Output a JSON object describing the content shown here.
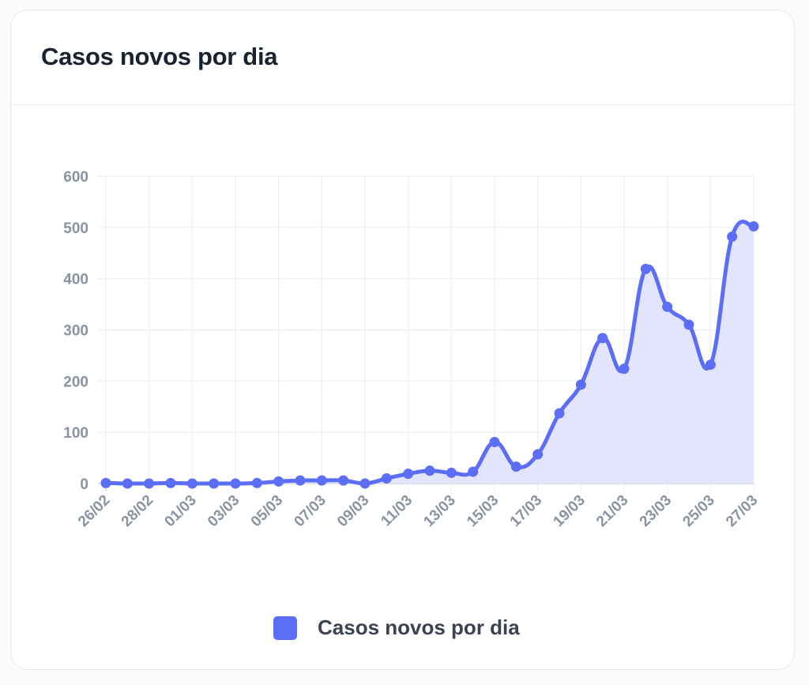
{
  "card": {
    "title": "Casos novos por dia"
  },
  "legend": {
    "items": [
      {
        "label": "Casos novos por dia",
        "color": "#5b6ef5"
      }
    ]
  },
  "colors": {
    "line": "#5b6ef5",
    "fill": "#dfe2fb",
    "grid": "#eceff3",
    "axis_text": "#8a93a2",
    "title": "#182230"
  },
  "chart_data": {
    "type": "area",
    "title": "Casos novos por dia",
    "xlabel": "",
    "ylabel": "",
    "ylim": [
      0,
      600
    ],
    "yticks": [
      0,
      100,
      200,
      300,
      400,
      500,
      600
    ],
    "grid": true,
    "legend_position": "bottom",
    "x": [
      "26/02",
      "27/02",
      "28/02",
      "29/02",
      "01/03",
      "02/03",
      "03/03",
      "04/03",
      "05/03",
      "06/03",
      "07/03",
      "08/03",
      "09/03",
      "10/03",
      "11/03",
      "12/03",
      "13/03",
      "14/03",
      "15/03",
      "16/03",
      "17/03",
      "18/03",
      "19/03",
      "20/03",
      "21/03",
      "22/03",
      "23/03",
      "24/03",
      "25/03",
      "26/03",
      "27/03"
    ],
    "x_tick_labels": [
      "26/02",
      "28/02",
      "01/03",
      "03/03",
      "05/03",
      "07/03",
      "09/03",
      "11/03",
      "13/03",
      "15/03",
      "17/03",
      "19/03",
      "21/03",
      "23/03",
      "25/03",
      "27/03"
    ],
    "series": [
      {
        "name": "Casos novos por dia",
        "values": [
          1,
          0,
          0,
          1,
          0,
          0,
          0,
          1,
          4,
          6,
          6,
          6,
          0,
          10,
          19,
          25,
          21,
          23,
          81,
          33,
          57,
          137,
          193,
          284,
          224,
          419,
          345,
          310,
          232,
          482,
          502
        ]
      }
    ]
  }
}
